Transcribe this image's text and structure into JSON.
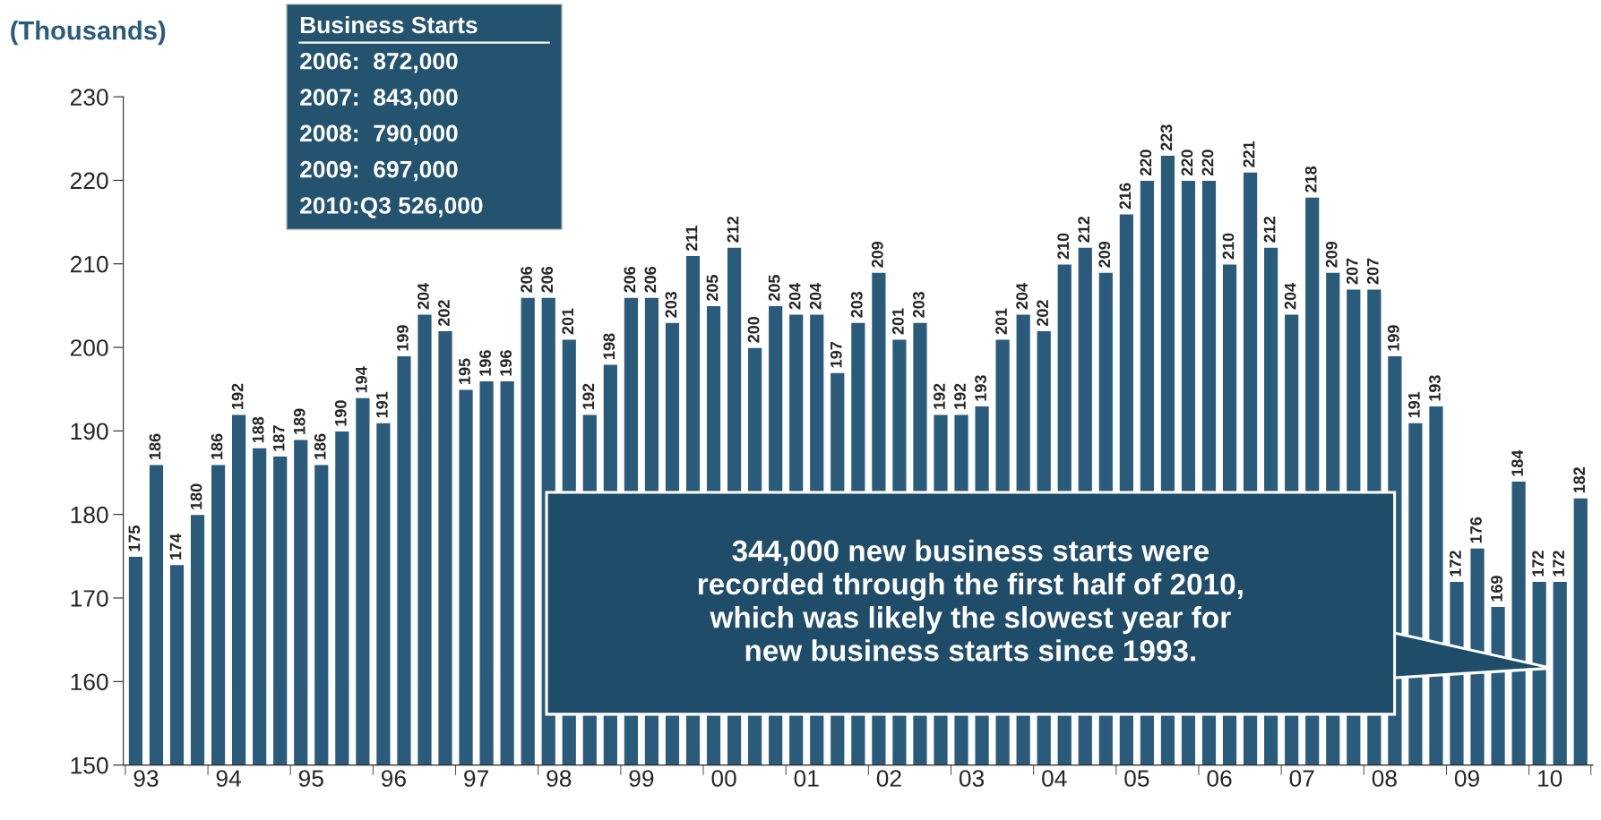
{
  "chart_data": {
    "type": "bar",
    "ylabel": "(Thousands)",
    "categories": [
      "93",
      null,
      null,
      null,
      "94",
      null,
      null,
      null,
      "95",
      null,
      null,
      null,
      "96",
      null,
      null,
      null,
      "97",
      null,
      null,
      null,
      "98",
      null,
      null,
      null,
      "99",
      null,
      null,
      null,
      "00",
      null,
      null,
      null,
      "01",
      null,
      null,
      null,
      "02",
      null,
      null,
      null,
      "03",
      null,
      null,
      null,
      "04",
      null,
      null,
      null,
      "05",
      null,
      null,
      null,
      "06",
      null,
      null,
      null,
      "07",
      null,
      null,
      null,
      "08",
      null,
      null,
      null,
      "09",
      null,
      null,
      null,
      "10",
      null,
      null
    ],
    "values": [
      175,
      186,
      174,
      180,
      186,
      192,
      188,
      187,
      189,
      186,
      190,
      194,
      191,
      199,
      204,
      202,
      195,
      196,
      196,
      206,
      206,
      201,
      192,
      198,
      206,
      206,
      203,
      211,
      205,
      212,
      200,
      205,
      204,
      204,
      197,
      203,
      209,
      201,
      203,
      192,
      192,
      193,
      201,
      204,
      202,
      210,
      212,
      209,
      216,
      220,
      223,
      220,
      220,
      210,
      221,
      212,
      204,
      218,
      209,
      207,
      207,
      199,
      191,
      193,
      172,
      176,
      169,
      184,
      172,
      172,
      182
    ],
    "color": "#2b5b7a",
    "ylim": [
      150,
      230
    ],
    "yticks": [
      150,
      160,
      170,
      180,
      190,
      200,
      210,
      220,
      230
    ],
    "data_labels": true,
    "grid": false,
    "legend": false,
    "annotations": [
      "Business Starts",
      "2006:  872,000",
      "2007:  843,000",
      "2008:  790,000",
      "2009:  697,000",
      "2010:Q3 526,000",
      "344,000 new business starts were\nrecorded through the first half of 2010,\nwhich was likely the slowest year for\nnew business starts since 1993."
    ]
  }
}
